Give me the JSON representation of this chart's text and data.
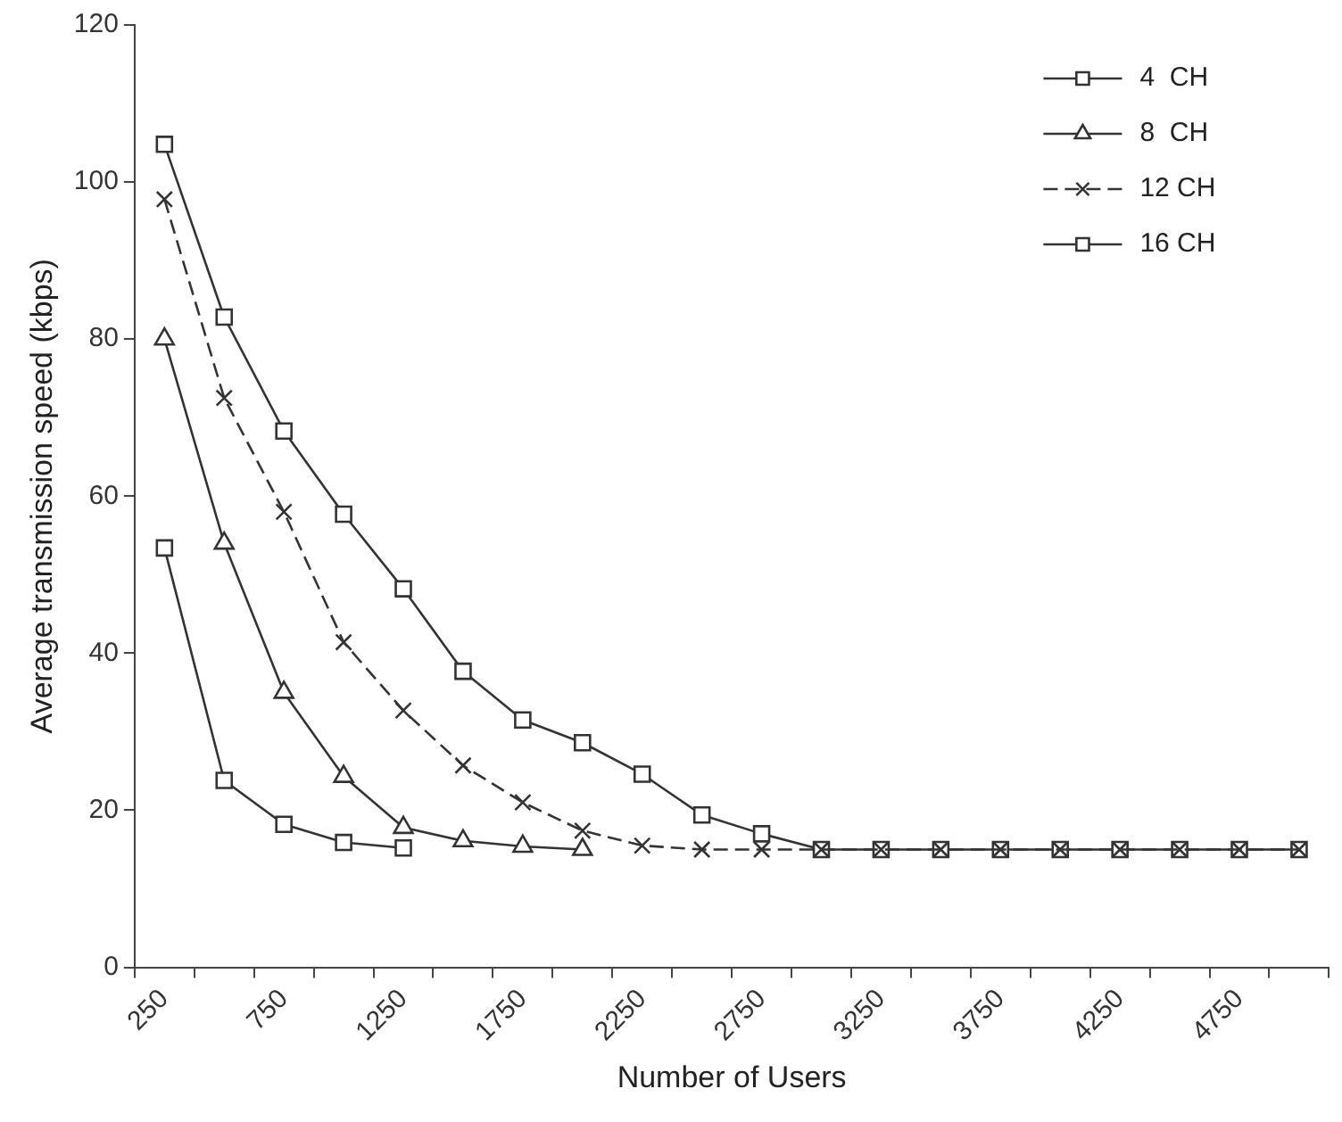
{
  "chart_data": {
    "type": "line",
    "xlabel": "Number of Users",
    "ylabel": "Average transmission speed (kbps)",
    "categories": [
      "250",
      null,
      "750",
      null,
      "1250",
      null,
      "1750",
      null,
      "2250",
      null,
      "2750",
      null,
      "3250",
      null,
      "3750",
      null,
      "4250",
      null,
      "4750",
      null
    ],
    "series": [
      {
        "name": "4  CH",
        "color": "#333333",
        "marker": "square",
        "line_style": "solid",
        "values": [
          53.4,
          23.8,
          18.2,
          15.9,
          15.2,
          null,
          null,
          null,
          null,
          null,
          null,
          null,
          null,
          null,
          null,
          null,
          null,
          null,
          null,
          null
        ]
      },
      {
        "name": "8  CH",
        "color": "#333333",
        "marker": "triangle",
        "line_style": "solid",
        "values": [
          80,
          54,
          35,
          24.3,
          17.8,
          16.1,
          15.4,
          15,
          null,
          null,
          null,
          null,
          null,
          null,
          null,
          null,
          null,
          null,
          null,
          null
        ]
      },
      {
        "name": "12 CH",
        "color": "#333333",
        "marker": "cross",
        "line_style": "dashed",
        "values": [
          97.8,
          72.5,
          58,
          41.4,
          32.7,
          25.7,
          21,
          17.4,
          15.5,
          15,
          15,
          15,
          15,
          15,
          15,
          15,
          15,
          15,
          15,
          15
        ]
      },
      {
        "name": "16 CH",
        "color": "#333333",
        "marker": "square",
        "line_style": "solid",
        "values": [
          104.8,
          82.8,
          68.3,
          57.7,
          48.2,
          37.7,
          31.5,
          28.6,
          24.6,
          19.4,
          17,
          15,
          15,
          15,
          15,
          15,
          15,
          15,
          15,
          15
        ]
      }
    ],
    "ylim": [
      0,
      120
    ],
    "yticks": [
      0,
      20,
      40,
      60,
      80,
      100,
      120
    ],
    "grid": false,
    "legend": "top right"
  }
}
